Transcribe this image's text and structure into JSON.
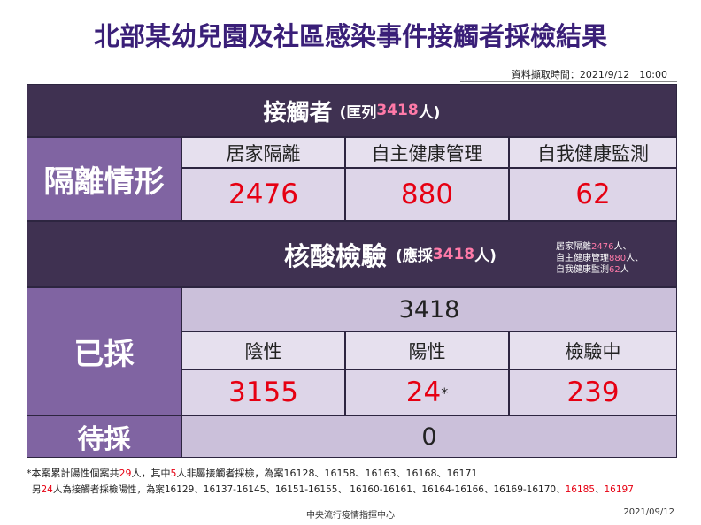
{
  "header": {
    "title": "北部某幼兒園及社區感染事件接觸者採檢結果",
    "timestamp": "資料擷取時間：2021/9/12　10:00"
  },
  "contacts": {
    "label": "接觸者",
    "prefix": "(匡列",
    "count": "3418",
    "suffix": "人)"
  },
  "quarantine": {
    "label": "隔離情形",
    "columns": [
      "居家隔離",
      "自主健康管理",
      "自我健康監測"
    ],
    "values": [
      "2476",
      "880",
      "62"
    ]
  },
  "testing": {
    "label": "核酸檢驗",
    "prefix": "(應採",
    "count": "3418",
    "suffix": "人)",
    "note": [
      [
        "居家隔離",
        "2476",
        "人、"
      ],
      [
        "自主健康管理",
        "880",
        "人、"
      ],
      [
        "自我健康監測",
        "62",
        "人"
      ]
    ]
  },
  "sampled": {
    "label": "已採",
    "total": "3418",
    "columns": [
      "陰性",
      "陽性",
      "檢驗中"
    ],
    "values": [
      "3155",
      "24",
      "239"
    ],
    "positive_mark": "*"
  },
  "pending": {
    "label": "待採",
    "value": "0"
  },
  "footnote": {
    "line1": [
      "*本案累計陽性個案共",
      "29",
      "人，其中",
      "5",
      "人非屬接觸者採檢，為案16128、16158、16163、16168、16171"
    ],
    "line2": [
      "另",
      "24",
      "人為接觸者採檢陽性，為案16129、16137-16145、16151-16155、 16160-16161、16164-16166、16169-16170、",
      "16185",
      "、",
      "16197"
    ]
  },
  "footer": {
    "source": "中央流行疫情指揮中心",
    "date": "2021/09/12"
  }
}
